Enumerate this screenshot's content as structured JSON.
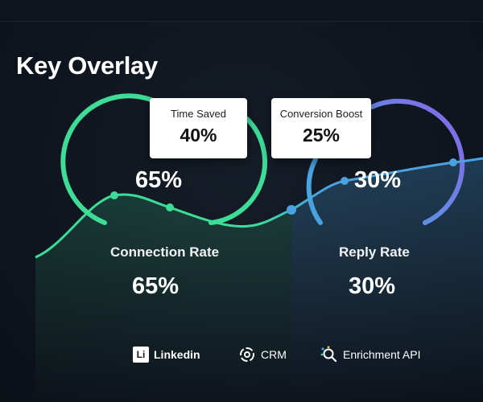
{
  "header": {
    "title": "Key Overlay"
  },
  "cards": [
    {
      "label": "Time Saved",
      "value": "40%"
    },
    {
      "label": "Conversion Boost",
      "value": "25%"
    }
  ],
  "gauges": [
    {
      "center_value": "65%",
      "label": "Connection Rate",
      "value": "65%",
      "level": 0.65,
      "color": "#3ddc97"
    },
    {
      "center_value": "30%",
      "label": "Reply Rate",
      "value": "30%",
      "level": 0.3,
      "color": "#8a63e8"
    }
  ],
  "integrations": [
    {
      "icon": "linkedin-icon",
      "label": "Linkedin"
    },
    {
      "icon": "crm-icon",
      "label": "CRM"
    },
    {
      "icon": "enrichment-api-icon",
      "label": "Enrichment API"
    }
  ],
  "colors": {
    "background": "#101720",
    "green": "#3ddc97",
    "blue": "#4aa3e0",
    "purple": "#8a63e8"
  }
}
